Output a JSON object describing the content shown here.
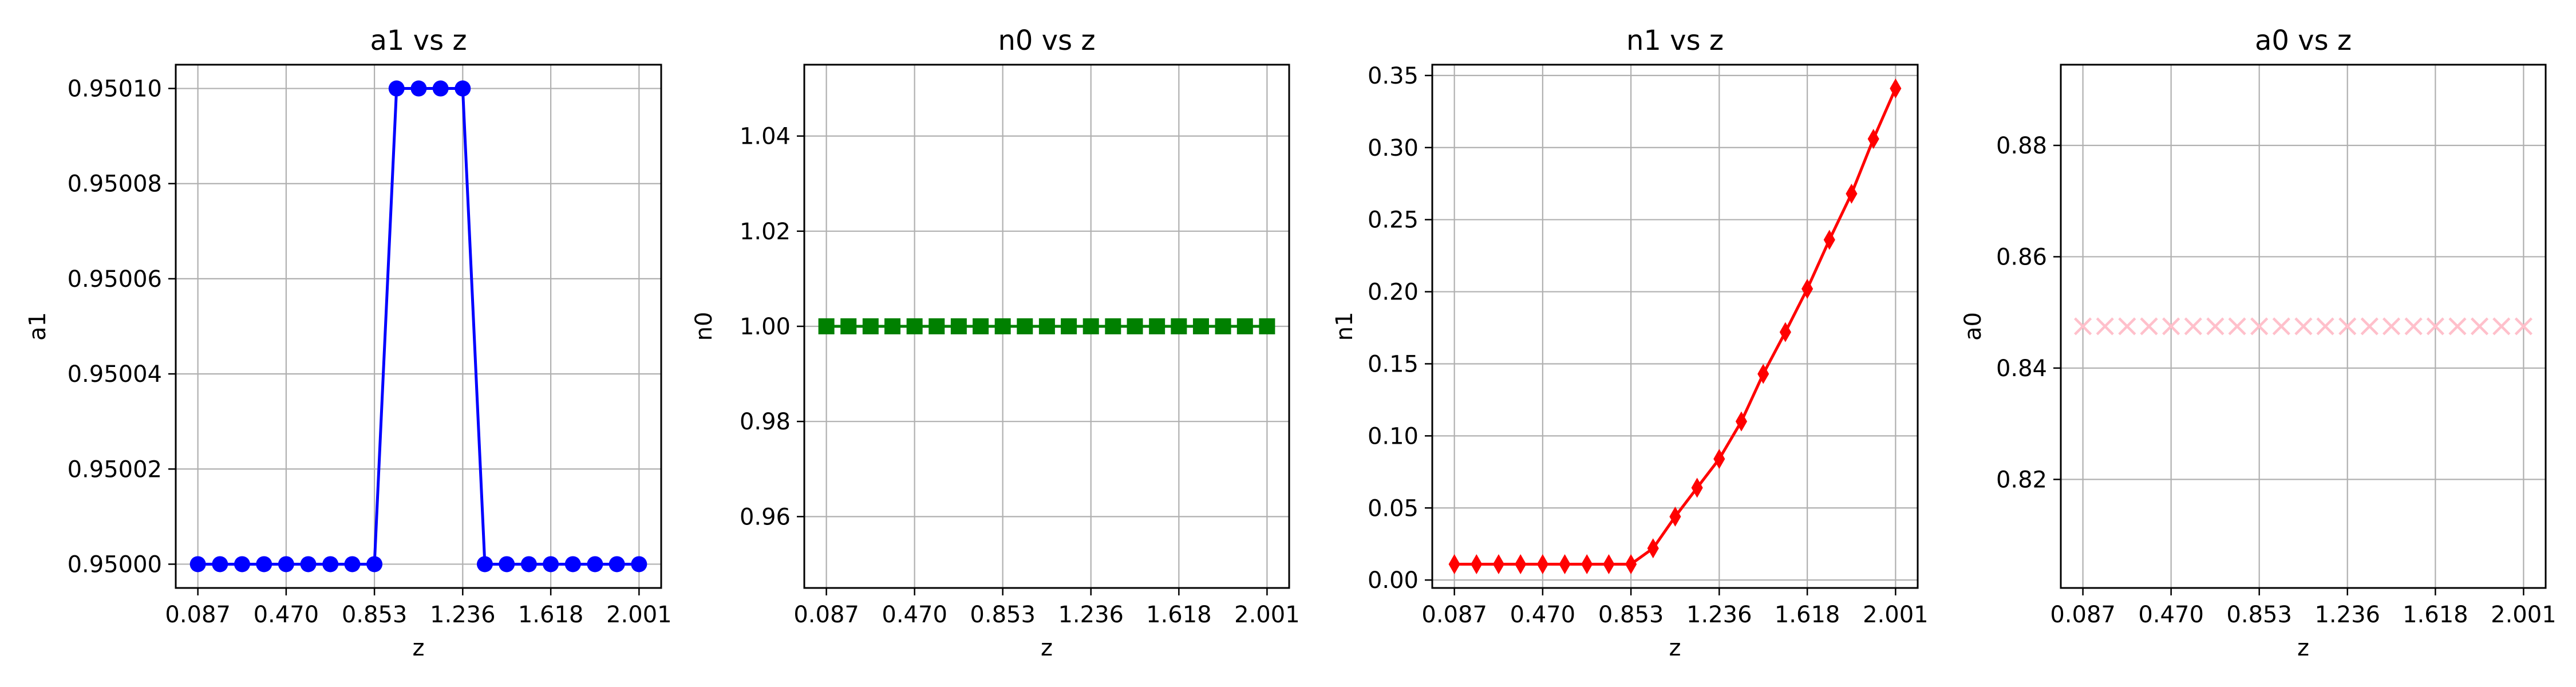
{
  "figure": {
    "background": "#ffffff"
  },
  "chart_data": [
    {
      "type": "line",
      "title": "a1 vs z",
      "xlabel": "z",
      "ylabel": "a1",
      "xlim": [
        -0.009,
        2.097
      ],
      "ylim": [
        0.949995,
        0.950105
      ],
      "xticks": [
        0.087,
        0.47,
        0.853,
        1.236,
        1.618,
        2.001
      ],
      "xtick_labels": [
        "0.087",
        "0.470",
        "0.853",
        "1.236",
        "1.618",
        "2.001"
      ],
      "yticks": [
        0.95,
        0.95002,
        0.95004,
        0.95006,
        0.95008,
        0.9501
      ],
      "ytick_labels": [
        "0.95000",
        "0.95002",
        "0.95004",
        "0.95006",
        "0.95008",
        "0.95010"
      ],
      "grid": true,
      "series": [
        {
          "color": "#0000ff",
          "marker": "circle",
          "x": [
            0.087,
            0.183,
            0.279,
            0.374,
            0.47,
            0.566,
            0.662,
            0.757,
            0.853,
            0.949,
            1.045,
            1.14,
            1.236,
            1.332,
            1.427,
            1.523,
            1.618,
            1.714,
            1.81,
            1.905,
            2.001
          ],
          "y": [
            0.95,
            0.95,
            0.95,
            0.95,
            0.95,
            0.95,
            0.95,
            0.95,
            0.95,
            0.9501,
            0.9501,
            0.9501,
            0.9501,
            0.95,
            0.95,
            0.95,
            0.95,
            0.95,
            0.95,
            0.95,
            0.95
          ]
        }
      ]
    },
    {
      "type": "line",
      "title": "n0 vs z",
      "xlabel": "z",
      "ylabel": "n0",
      "xlim": [
        -0.009,
        2.097
      ],
      "ylim": [
        0.945,
        1.055
      ],
      "xticks": [
        0.087,
        0.47,
        0.853,
        1.236,
        1.618,
        2.001
      ],
      "xtick_labels": [
        "0.087",
        "0.470",
        "0.853",
        "1.236",
        "1.618",
        "2.001"
      ],
      "yticks": [
        0.96,
        0.98,
        1.0,
        1.02,
        1.04
      ],
      "ytick_labels": [
        "0.96",
        "0.98",
        "1.00",
        "1.02",
        "1.04"
      ],
      "grid": true,
      "series": [
        {
          "color": "#008000",
          "marker": "square",
          "x": [
            0.087,
            0.183,
            0.279,
            0.374,
            0.47,
            0.566,
            0.662,
            0.757,
            0.853,
            0.949,
            1.045,
            1.14,
            1.236,
            1.332,
            1.427,
            1.523,
            1.618,
            1.714,
            1.81,
            1.905,
            2.001
          ],
          "y": [
            1.0,
            1.0,
            1.0,
            1.0,
            1.0,
            1.0,
            1.0,
            1.0,
            1.0,
            1.0,
            1.0,
            1.0,
            1.0,
            1.0,
            1.0,
            1.0,
            1.0,
            1.0,
            1.0,
            1.0,
            1.0
          ]
        }
      ]
    },
    {
      "type": "line",
      "title": "n1 vs z",
      "xlabel": "z",
      "ylabel": "n1",
      "xlim": [
        -0.009,
        2.097
      ],
      "ylim": [
        -0.0055,
        0.3575
      ],
      "xticks": [
        0.087,
        0.47,
        0.853,
        1.236,
        1.618,
        2.001
      ],
      "xtick_labels": [
        "0.087",
        "0.470",
        "0.853",
        "1.236",
        "1.618",
        "2.001"
      ],
      "yticks": [
        0.0,
        0.05,
        0.1,
        0.15,
        0.2,
        0.25,
        0.3,
        0.35
      ],
      "ytick_labels": [
        "0.00",
        "0.05",
        "0.10",
        "0.15",
        "0.20",
        "0.25",
        "0.30",
        "0.35"
      ],
      "grid": true,
      "series": [
        {
          "color": "#ff0000",
          "marker": "diamond",
          "x": [
            0.087,
            0.183,
            0.279,
            0.374,
            0.47,
            0.566,
            0.662,
            0.757,
            0.853,
            0.949,
            1.045,
            1.14,
            1.236,
            1.332,
            1.427,
            1.523,
            1.618,
            1.714,
            1.81,
            1.905,
            2.001
          ],
          "y": [
            0.011,
            0.011,
            0.011,
            0.011,
            0.011,
            0.011,
            0.011,
            0.011,
            0.011,
            0.022,
            0.044,
            0.064,
            0.084,
            0.11,
            0.143,
            0.172,
            0.202,
            0.236,
            0.268,
            0.306,
            0.341
          ]
        }
      ]
    },
    {
      "type": "scatter",
      "title": "a0 vs z",
      "xlabel": "z",
      "ylabel": "a0",
      "xlim": [
        -0.009,
        2.097
      ],
      "ylim": [
        0.8005,
        0.8945
      ],
      "xticks": [
        0.087,
        0.47,
        0.853,
        1.236,
        1.618,
        2.001
      ],
      "xtick_labels": [
        "0.087",
        "0.470",
        "0.853",
        "1.236",
        "1.618",
        "2.001"
      ],
      "yticks": [
        0.82,
        0.84,
        0.86,
        0.88
      ],
      "ytick_labels": [
        "0.82",
        "0.84",
        "0.86",
        "0.88"
      ],
      "grid": true,
      "series": [
        {
          "color": "#ffc0cb",
          "marker": "x",
          "x": [
            0.087,
            0.183,
            0.279,
            0.374,
            0.47,
            0.566,
            0.662,
            0.757,
            0.853,
            0.949,
            1.045,
            1.14,
            1.236,
            1.332,
            1.427,
            1.523,
            1.618,
            1.714,
            1.81,
            1.905,
            2.001
          ],
          "y": [
            0.8475,
            0.8475,
            0.8475,
            0.8475,
            0.8475,
            0.8475,
            0.8475,
            0.8475,
            0.8475,
            0.8475,
            0.8475,
            0.8475,
            0.8475,
            0.8475,
            0.8475,
            0.8475,
            0.8475,
            0.8475,
            0.8475,
            0.8475,
            0.8475
          ]
        }
      ]
    }
  ]
}
